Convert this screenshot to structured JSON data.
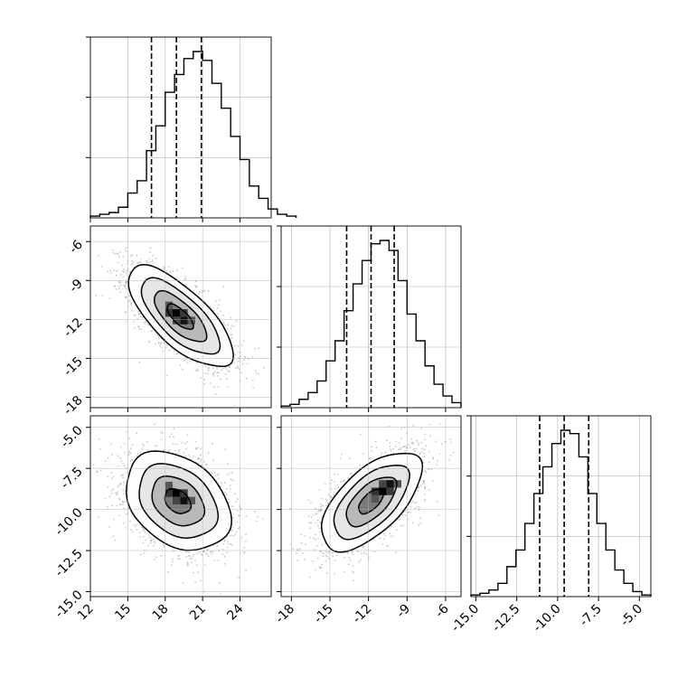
{
  "chart_data": {
    "type": "corner",
    "parameters": [
      {
        "name": "",
        "ticks": [
          "12",
          "15",
          "18",
          "21",
          "24"
        ],
        "tick_values": [
          12,
          15,
          18,
          21,
          24
        ],
        "range": [
          12,
          26.5
        ],
        "quantiles": [
          16.9,
          18.9,
          20.9
        ],
        "histogram": {
          "bin_start": 12.0,
          "bin_width": 0.75,
          "counts": [
            1,
            2,
            3,
            6,
            14,
            21,
            38,
            52,
            71,
            81,
            90,
            94,
            89,
            76,
            62,
            46,
            33,
            18,
            11,
            5,
            2,
            1
          ]
        }
      },
      {
        "name": "",
        "ticks": [
          "-18",
          "-15",
          "-12",
          "-9",
          "-6"
        ],
        "tick_values": [
          -18,
          -15,
          -12,
          -9,
          -6
        ],
        "range": [
          -18.8,
          -4.8
        ],
        "quantiles": [
          -13.7,
          -11.8,
          -10.0
        ],
        "histogram": {
          "bin_start": -18.8,
          "bin_width": 0.7,
          "counts": [
            1,
            2,
            5,
            9,
            16,
            28,
            40,
            58,
            74,
            88,
            98,
            100,
            94,
            76,
            56,
            40,
            25,
            14,
            7,
            3
          ]
        }
      },
      {
        "name": "",
        "ticks": [
          "-15.0",
          "-12.5",
          "-10.0",
          "-7.5",
          "-5.0"
        ],
        "tick_values": [
          -15,
          -12.5,
          -10,
          -7.5,
          -5
        ],
        "range": [
          -15.3,
          -4.3
        ],
        "quantiles": [
          -11.1,
          -9.6,
          -8.1
        ],
        "histogram": {
          "bin_start": -15.3,
          "bin_width": 0.55,
          "counts": [
            1,
            2,
            4,
            8,
            18,
            28,
            44,
            62,
            78,
            92,
            100,
            98,
            84,
            62,
            44,
            28,
            16,
            8,
            3,
            1
          ]
        }
      }
    ],
    "pairs": [
      {
        "x": 0,
        "y": 1,
        "mean": [
          19.2,
          -11.8
        ],
        "sd": [
          2.1,
          1.95
        ],
        "corr": -0.72,
        "contours_sigma": [
          0.5,
          1.0,
          1.5,
          2.0
        ],
        "peak": [
          18.9,
          -11.5
        ]
      },
      {
        "x": 0,
        "y": 2,
        "mean": [
          19.0,
          -9.5
        ],
        "sd": [
          2.1,
          1.5
        ],
        "corr": -0.32,
        "contours_sigma": [
          0.5,
          1.0,
          1.5,
          2.0
        ],
        "peak": [
          18.9,
          -9.0
        ]
      },
      {
        "x": 1,
        "y": 2,
        "mean": [
          -11.8,
          -9.5
        ],
        "sd": [
          1.95,
          1.5
        ],
        "corr": 0.62,
        "contours_sigma": [
          0.5,
          1.0,
          1.5,
          2.0
        ],
        "peak": [
          -10.9,
          -8.9
        ]
      }
    ],
    "grid": true,
    "colors": {
      "line": "#000000",
      "scatter": "#9a9a9a",
      "grid": "#b0b0b0",
      "frame": "#000000"
    }
  }
}
